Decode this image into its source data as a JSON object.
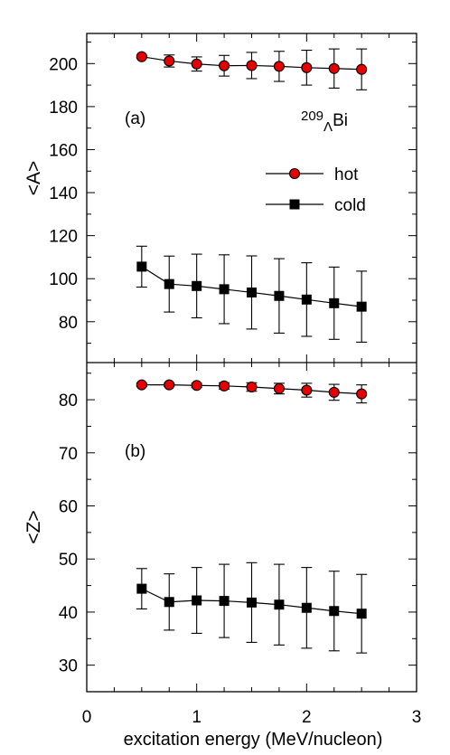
{
  "chart_data": {
    "type": "line",
    "xlabel": "excitation energy (MeV/nucleon)",
    "x_ticks": [
      "0",
      "1",
      "2",
      "3"
    ],
    "xlim": [
      0,
      3
    ],
    "legend": {
      "placement": "top-right",
      "entries": [
        "hot",
        "cold"
      ]
    },
    "panels": [
      {
        "tag": "(a)",
        "ylabel": "<A>",
        "nucleus": {
          "mass": "209",
          "sub": "Λ",
          "symbol": "Bi"
        },
        "ylim": [
          61,
          214
        ],
        "y_ticks": [
          "80",
          "100",
          "120",
          "140",
          "160",
          "180",
          "200"
        ],
        "x": [
          0.5,
          0.75,
          1.0,
          1.25,
          1.5,
          1.75,
          2.0,
          2.25,
          2.5
        ],
        "series": [
          {
            "name": "hot",
            "color": "#e60000",
            "marker": "circle",
            "values": [
              203.2,
              201.2,
              199.8,
              199.0,
              199.1,
              198.7,
              198.1,
              197.7,
              197.3
            ],
            "errors": [
              0.6,
              2.8,
              3.3,
              4.8,
              6.1,
              7.0,
              8.1,
              9.1,
              9.5
            ]
          },
          {
            "name": "cold",
            "color": "#000000",
            "marker": "square",
            "values": [
              105.6,
              97.5,
              96.6,
              95.1,
              93.6,
              92.0,
              90.3,
              88.6,
              87.0
            ],
            "errors": [
              9.5,
              13.0,
              14.8,
              16.0,
              17.0,
              17.3,
              17.1,
              16.8,
              16.5
            ]
          }
        ]
      },
      {
        "tag": "(b)",
        "ylabel": "<Z>",
        "ylim": [
          25,
          87
        ],
        "y_ticks": [
          "30",
          "40",
          "50",
          "60",
          "70",
          "80"
        ],
        "x": [
          0.5,
          0.75,
          1.0,
          1.25,
          1.5,
          1.75,
          2.0,
          2.25,
          2.5
        ],
        "series": [
          {
            "name": "hot",
            "color": "#e60000",
            "marker": "circle",
            "values": [
              82.8,
              82.8,
              82.7,
              82.6,
              82.4,
              82.1,
              81.8,
              81.4,
              81.1
            ],
            "errors": [
              0.3,
              0.3,
              0.4,
              0.6,
              0.8,
              1.0,
              1.3,
              1.5,
              1.7
            ]
          },
          {
            "name": "cold",
            "color": "#000000",
            "marker": "square",
            "values": [
              44.4,
              41.9,
              42.2,
              42.1,
              41.8,
              41.4,
              40.8,
              40.2,
              39.7
            ],
            "errors": [
              3.8,
              5.3,
              6.2,
              6.9,
              7.5,
              7.6,
              7.6,
              7.5,
              7.4
            ]
          }
        ]
      }
    ]
  }
}
